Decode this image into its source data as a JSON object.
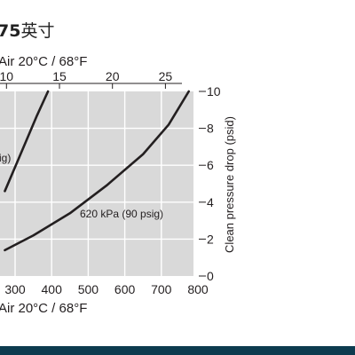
{
  "page": {
    "title_bold": "75",
    "title_rest": "英寸",
    "footer_color": "#0d3b4f"
  },
  "chart_data": {
    "type": "line",
    "top_axis": {
      "label": "Air 20°C / 68°F",
      "ticks": [
        10,
        15,
        20,
        25
      ],
      "unit_hint": "flow (upper scale)"
    },
    "bottom_axis": {
      "label": "Air 20°C / 68°F",
      "ticks": [
        300,
        400,
        500,
        600,
        700,
        800
      ],
      "range": [
        272,
        800
      ]
    },
    "right_axis": {
      "label": "Clean pressure drop (psid)",
      "ticks": [
        0,
        2,
        4,
        6,
        8,
        10
      ],
      "range": [
        0,
        10
      ]
    },
    "grid": true,
    "colors": {
      "plot_bg": "#d9d9d9",
      "grid": "#ffffff",
      "line": "#231f20"
    },
    "series": [
      {
        "name": "",
        "visible_label_fragment": "sig)",
        "points": [
          [
            272,
            4.6
          ],
          [
            300,
            5.9
          ],
          [
            330,
            7.3
          ],
          [
            360,
            8.7
          ],
          [
            390,
            10.0
          ]
        ]
      },
      {
        "name": "620 kPa (90 psig)",
        "points": [
          [
            272,
            1.4
          ],
          [
            350,
            2.2
          ],
          [
            450,
            3.4
          ],
          [
            550,
            4.9
          ],
          [
            650,
            6.6
          ],
          [
            720,
            8.2
          ],
          [
            775,
            10.0
          ]
        ]
      }
    ]
  }
}
